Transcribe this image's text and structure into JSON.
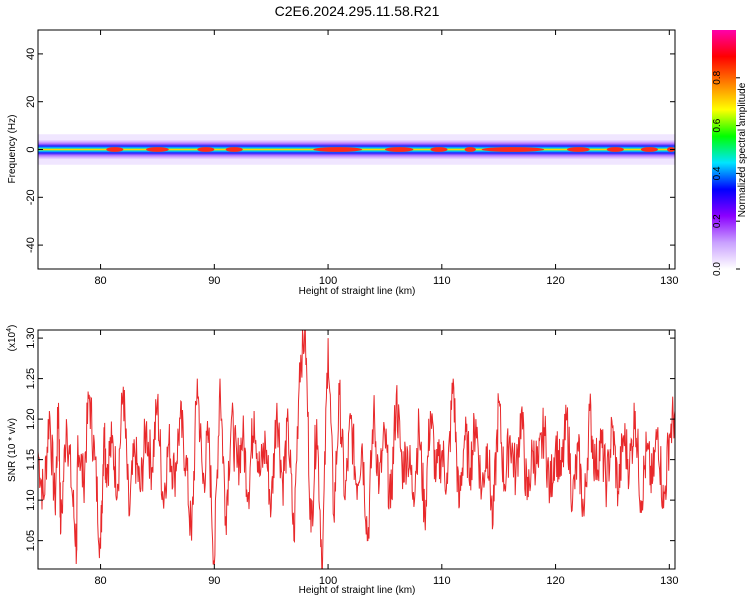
{
  "title": "C2E6.2024.295.11.58.R21",
  "chart_data": [
    {
      "type": "heatmap",
      "xlabel": "Height of straight line (km)",
      "ylabel": "Frequency (Hz)",
      "xlim": [
        74.5,
        130.5
      ],
      "ylim": [
        -50,
        50
      ],
      "x_ticks": [
        80,
        90,
        100,
        110,
        120,
        130
      ],
      "y_ticks": [
        -40,
        -20,
        0,
        20,
        40
      ],
      "band_center_hz": 0,
      "band_halfwidth_hz": 4,
      "peak_frequency_hz": 0,
      "colorbar": {
        "label": "Normalized spectral amplitude",
        "range": [
          0,
          1
        ],
        "ticks": [
          "0.0",
          "0.2",
          "0.4",
          "0.6",
          "0.8"
        ],
        "colors": [
          "#ffffff",
          "#c9a0ff",
          "#8b00ff",
          "#0000ff",
          "#00e5ff",
          "#00ff00",
          "#ffff00",
          "#ff7f00",
          "#ff0000",
          "#ff00aa"
        ]
      },
      "grid": false
    },
    {
      "type": "line",
      "xlabel": "Height of straight line (km)",
      "ylabel": "SNR (10 * v/v)",
      "y_multiplier": "(x10",
      "y_multiplier_exp": "4",
      "y_multiplier_close": ")",
      "xlim": [
        74.5,
        130.5
      ],
      "ylim": [
        1.015,
        1.31
      ],
      "x_ticks": [
        80,
        90,
        100,
        110,
        120,
        130
      ],
      "y_ticks": [
        "1.05",
        "1.10",
        "1.15",
        "1.20",
        "1.25",
        "1.30"
      ],
      "series_color": "#e8292b",
      "grid": false,
      "series": [
        {
          "x": [
            74.5,
            75.0,
            75.5,
            76.0,
            76.3,
            76.5,
            77.0,
            77.5,
            77.9,
            78.0,
            78.5,
            79.0,
            79.5,
            80.0,
            80.3,
            80.5,
            81.0,
            81.5,
            82.0,
            82.5,
            83.0,
            83.5,
            84.0,
            84.5,
            85.0,
            85.5,
            86.0,
            86.5,
            87.0,
            87.5,
            88.0,
            88.5,
            89.0,
            89.5,
            90.0,
            90.5,
            91.0,
            91.5,
            92.0,
            92.5,
            93.0,
            93.5,
            94.0,
            94.5,
            95.0,
            95.5,
            96.0,
            96.5,
            97.0,
            97.5,
            98.0,
            98.5,
            99.0,
            99.5,
            100.0,
            100.5,
            101.0,
            101.5,
            102.0,
            102.5,
            103.0,
            103.5,
            104.0,
            104.5,
            105.0,
            105.5,
            106.0,
            106.5,
            107.0,
            107.5,
            108.0,
            108.5,
            109.0,
            109.5,
            110.0,
            110.5,
            111.0,
            111.5,
            112.0,
            112.5,
            113.0,
            113.5,
            114.0,
            114.5,
            115.0,
            115.5,
            116.0,
            116.5,
            117.0,
            117.5,
            118.0,
            118.5,
            119.0,
            119.5,
            120.0,
            120.5,
            121.0,
            121.5,
            122.0,
            122.5,
            123.0,
            123.5,
            124.0,
            124.5,
            125.0,
            125.5,
            126.0,
            126.5,
            127.0,
            127.5,
            128.0,
            128.5,
            129.0,
            129.5,
            130.0,
            130.5
          ],
          "y": [
            1.16,
            1.1,
            1.21,
            1.09,
            1.22,
            1.06,
            1.2,
            1.11,
            1.04,
            1.18,
            1.12,
            1.23,
            1.15,
            1.04,
            1.19,
            1.14,
            1.17,
            1.12,
            1.24,
            1.08,
            1.16,
            1.11,
            1.19,
            1.14,
            1.22,
            1.1,
            1.17,
            1.13,
            1.2,
            1.15,
            1.05,
            1.25,
            1.12,
            1.18,
            1.02,
            1.25,
            1.08,
            1.2,
            1.14,
            1.18,
            1.11,
            1.21,
            1.13,
            1.17,
            1.09,
            1.22,
            1.12,
            1.19,
            1.05,
            1.27,
            1.31,
            1.06,
            1.2,
            1.015,
            1.3,
            1.08,
            1.23,
            1.1,
            1.2,
            1.12,
            1.17,
            1.05,
            1.21,
            1.12,
            1.18,
            1.09,
            1.23,
            1.14,
            1.16,
            1.11,
            1.19,
            1.08,
            1.21,
            1.13,
            1.16,
            1.12,
            1.25,
            1.09,
            1.18,
            1.14,
            1.2,
            1.11,
            1.17,
            1.07,
            1.22,
            1.12,
            1.18,
            1.13,
            1.21,
            1.1,
            1.16,
            1.14,
            1.19,
            1.11,
            1.17,
            1.13,
            1.2,
            1.1,
            1.16,
            1.08,
            1.21,
            1.14,
            1.17,
            1.12,
            1.19,
            1.11,
            1.18,
            1.14,
            1.21,
            1.1,
            1.16,
            1.12,
            1.19,
            1.09,
            1.18,
            1.21
          ]
        }
      ]
    }
  ]
}
